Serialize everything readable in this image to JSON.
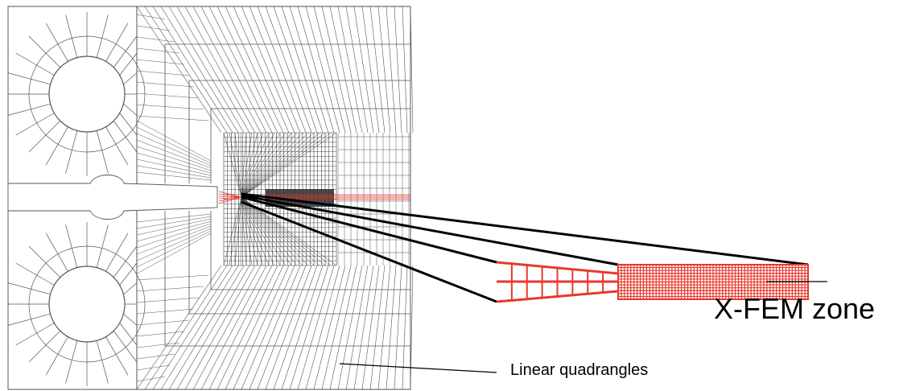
{
  "labels": {
    "xfem_zone": "X-FEM zone",
    "linear_quadrangles": "Linear quadrangles"
  },
  "colors": {
    "mesh": "#555555",
    "mesh_dense": "#222222",
    "xfem": "#e8392c",
    "leader": "#000000"
  }
}
